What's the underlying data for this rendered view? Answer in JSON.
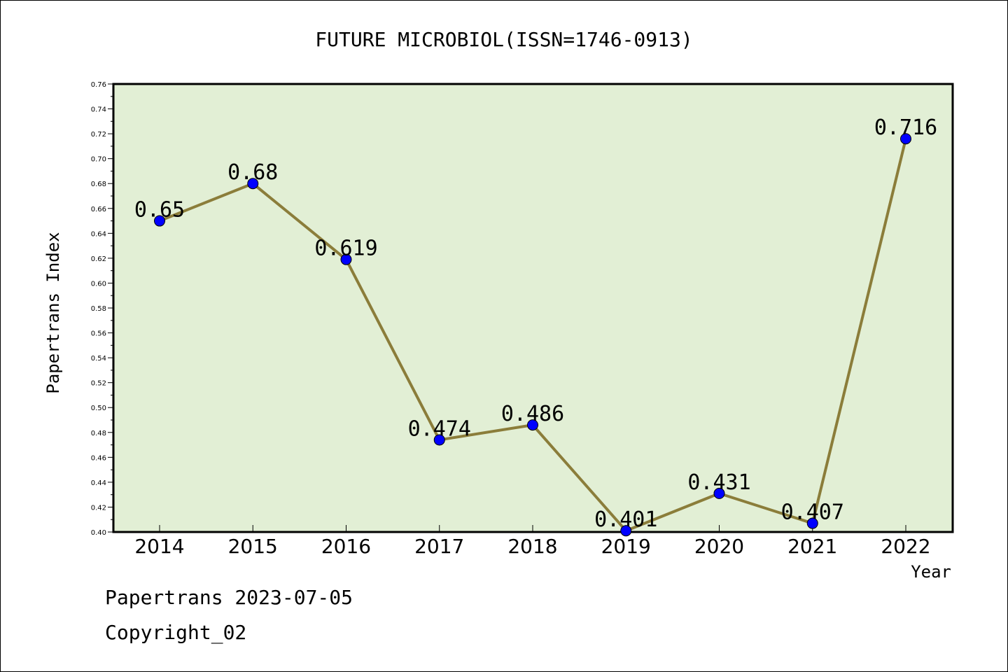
{
  "footer": {
    "line1": "Papertrans 2023-07-05",
    "line2": "Copyright_02"
  },
  "colors": {
    "plot_background": "#e2efd5",
    "line": "#8b7d3a",
    "marker": "#0000ff"
  },
  "chart_data": {
    "type": "line",
    "title": "FUTURE MICROBIOL(ISSN=1746-0913)",
    "xlabel": "Year",
    "ylabel": "Papertrans Index",
    "categories": [
      "2014",
      "2015",
      "2016",
      "2017",
      "2018",
      "2019",
      "2020",
      "2021",
      "2022"
    ],
    "series": [
      {
        "values": [
          0.65,
          0.68,
          0.619,
          0.474,
          0.486,
          0.401,
          0.431,
          0.407,
          0.716
        ],
        "labels": [
          "0.65",
          "0.68",
          "0.619",
          "0.474",
          "0.486",
          "0.401",
          "0.431",
          "0.407",
          "0.716"
        ]
      }
    ],
    "ylim": [
      0.4,
      0.76
    ],
    "yticks": [
      "0.40",
      "0.42",
      "0.44",
      "0.46",
      "0.48",
      "0.50",
      "0.52",
      "0.54",
      "0.56",
      "0.58",
      "0.60",
      "0.62",
      "0.64",
      "0.66",
      "0.68",
      "0.70",
      "0.72",
      "0.74",
      "0.76"
    ],
    "grid": false,
    "legend": "none"
  }
}
